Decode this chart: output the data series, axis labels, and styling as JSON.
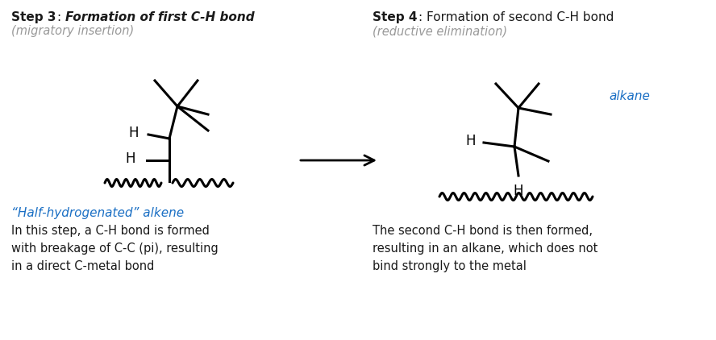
{
  "bg_color": "#ffffff",
  "step3_title_bold": "Step 3",
  "step3_title_colon_rest": ": ",
  "step3_title_italic": "Formation of first C-H bond",
  "step3_subtitle": "(migratory insertion)",
  "step3_label_blue": "“Half-hydrogenated” alkene",
  "step3_desc": "In this step, a C-H bond is formed\nwith breakage of C-C (pi), resulting\nin a direct C-metal bond",
  "step4_title_bold": "Step 4",
  "step4_title_colon_rest": ": ",
  "step4_title_normal": "Formation of second C-H bond",
  "step4_subtitle": "(reductive elimination)",
  "step4_label_blue": "alkane",
  "step4_desc": "The second C-H bond is then formed,\nresulting in an alkane, which does not\nbind strongly to the metal",
  "blue_color": "#1a6fc4",
  "gray_color": "#999999",
  "black_color": "#1a1a1a"
}
